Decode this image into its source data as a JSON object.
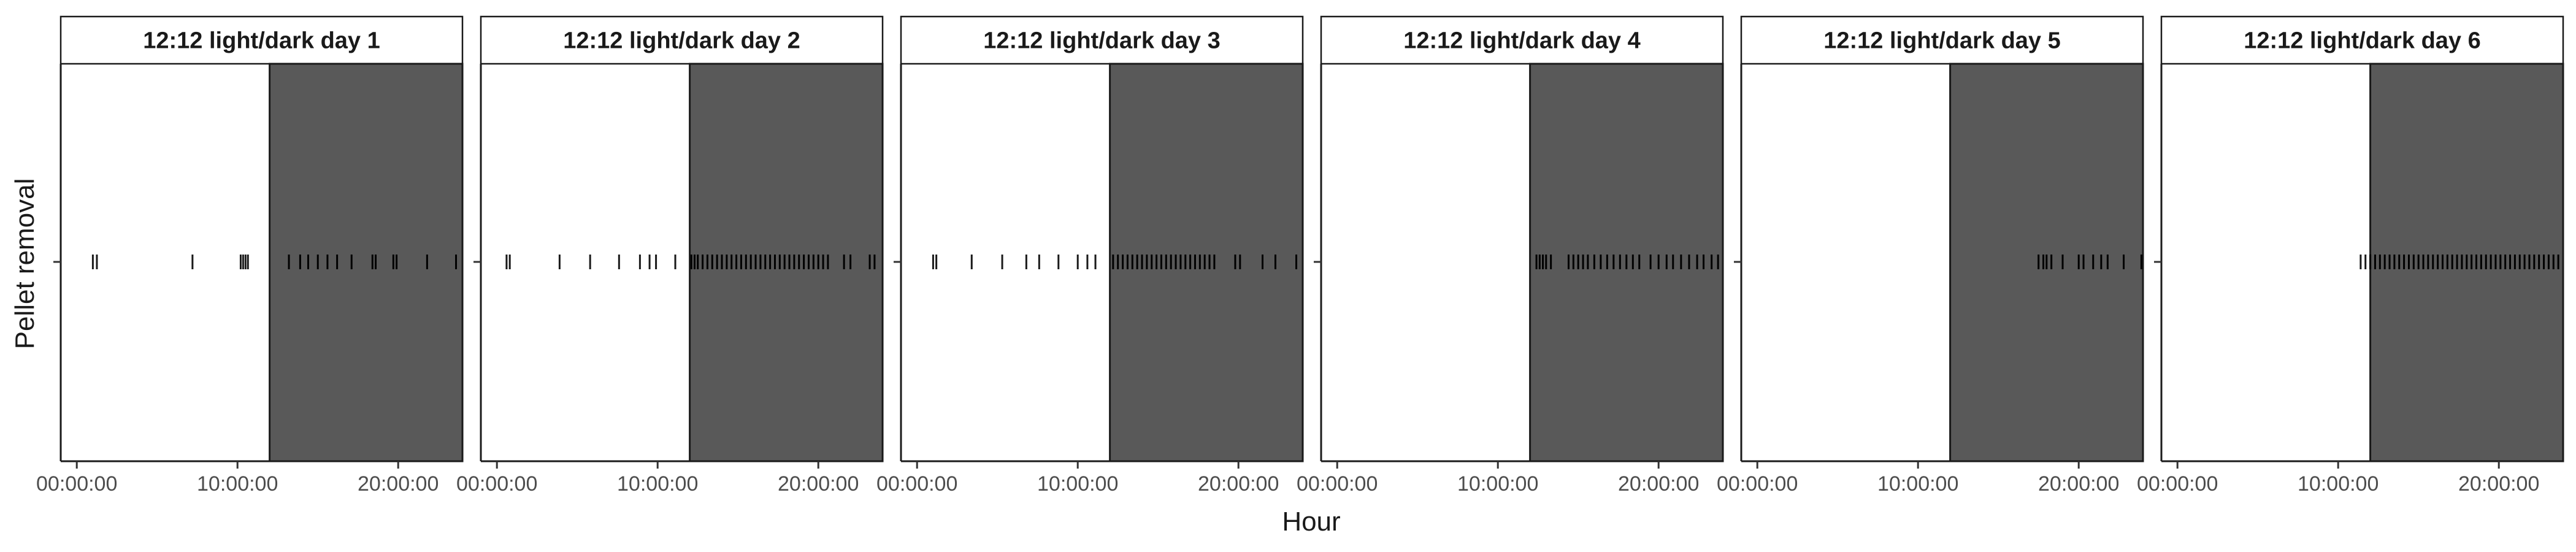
{
  "chart_data": {
    "type": "strip",
    "xlabel": "Hour",
    "ylabel": "Pellet removal",
    "y_ticks": [
      ""
    ],
    "x_ticks": [
      "00:00:00",
      "10:00:00",
      "20:00:00"
    ],
    "x_tick_hours": [
      0,
      10,
      20
    ],
    "xlim_hours": [
      -1,
      24
    ],
    "dark_period_hours": [
      12,
      24
    ],
    "colors": {
      "dark": "#595959",
      "event_light": "#1a1a1a",
      "event_dark": "#000000"
    },
    "panels": [
      {
        "label": "12:12 light/dark day 1",
        "events_hours": [
          1.0,
          1.25,
          7.2,
          10.2,
          10.35,
          10.5,
          10.65,
          13.2,
          13.9,
          14.4,
          15.0,
          15.6,
          16.2,
          17.1,
          18.4,
          18.6,
          19.7,
          19.9,
          21.8,
          23.6
        ]
      },
      {
        "label": "12:12 light/dark day 2",
        "events_hours": [
          0.6,
          0.8,
          3.9,
          5.8,
          7.6,
          8.9,
          9.5,
          9.9,
          11.1,
          12.1,
          12.3,
          12.5,
          12.8,
          13.1,
          13.4,
          13.7,
          14.0,
          14.3,
          14.6,
          14.9,
          15.2,
          15.5,
          15.8,
          16.1,
          16.4,
          16.7,
          17.0,
          17.3,
          17.6,
          17.9,
          18.2,
          18.5,
          18.8,
          19.1,
          19.4,
          19.7,
          20.0,
          20.3,
          20.6,
          21.6,
          22.0,
          23.2,
          23.5
        ]
      },
      {
        "label": "12:12 light/dark day 3",
        "events_hours": [
          1.0,
          1.2,
          3.4,
          5.3,
          6.8,
          7.6,
          8.8,
          10.0,
          10.6,
          11.1,
          12.2,
          12.5,
          12.8,
          13.1,
          13.4,
          13.7,
          14.0,
          14.3,
          14.6,
          14.9,
          15.2,
          15.5,
          15.8,
          16.1,
          16.4,
          16.7,
          17.0,
          17.3,
          17.6,
          17.9,
          18.2,
          18.5,
          19.8,
          20.1,
          21.5,
          22.3,
          23.6
        ]
      },
      {
        "label": "12:12 light/dark day 4",
        "events_hours": [
          12.4,
          12.6,
          12.8,
          13.0,
          13.3,
          14.4,
          14.7,
          15.0,
          15.3,
          15.6,
          16.0,
          16.4,
          16.8,
          17.2,
          17.6,
          18.0,
          18.4,
          18.8,
          19.5,
          20.0,
          20.5,
          20.9,
          21.4,
          21.9,
          22.4,
          22.8,
          23.3,
          23.7
        ]
      },
      {
        "label": "12:12 light/dark day 5",
        "events_hours": [
          17.5,
          17.8,
          18.0,
          18.3,
          19.0,
          20.0,
          20.3,
          20.9,
          21.4,
          21.8,
          22.8,
          23.9
        ]
      },
      {
        "label": "12:12 light/dark day 6",
        "events_hours": [
          11.4,
          11.7,
          12.0,
          12.3,
          12.6,
          12.9,
          13.2,
          13.5,
          13.8,
          14.1,
          14.4,
          14.7,
          15.0,
          15.3,
          15.6,
          15.9,
          16.2,
          16.5,
          16.8,
          17.1,
          17.4,
          17.7,
          18.0,
          18.3,
          18.6,
          18.9,
          19.2,
          19.5,
          19.8,
          20.1,
          20.4,
          20.7,
          21.0,
          21.3,
          21.6,
          21.9,
          22.2,
          22.5,
          22.8,
          23.1,
          23.4,
          23.7
        ]
      }
    ]
  }
}
